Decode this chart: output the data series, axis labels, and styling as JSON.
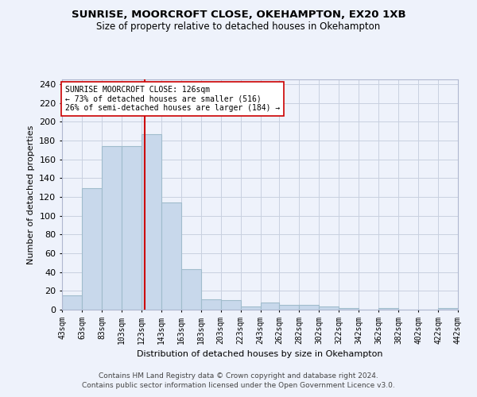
{
  "title": "SUNRISE, MOORCROFT CLOSE, OKEHAMPTON, EX20 1XB",
  "subtitle": "Size of property relative to detached houses in Okehampton",
  "xlabel": "Distribution of detached houses by size in Okehampton",
  "ylabel": "Number of detached properties",
  "bar_color": "#c8d8eb",
  "bar_edge_color": "#a0bccc",
  "background_color": "#eef2fb",
  "grid_color": "#c8d0e0",
  "vline_color": "#cc0000",
  "vline_x": 126,
  "annotation_text": "SUNRISE MOORCROFT CLOSE: 126sqm\n← 73% of detached houses are smaller (516)\n26% of semi-detached houses are larger (184) →",
  "annotation_box_color": "#ffffff",
  "annotation_box_edge": "#cc0000",
  "footer": "Contains HM Land Registry data © Crown copyright and database right 2024.\nContains public sector information licensed under the Open Government Licence v3.0.",
  "bin_edges": [
    43,
    63,
    83,
    103,
    123,
    143,
    163,
    183,
    203,
    223,
    243,
    262,
    282,
    302,
    322,
    342,
    362,
    382,
    402,
    422,
    442
  ],
  "bin_values": [
    15,
    129,
    174,
    174,
    187,
    114,
    43,
    11,
    10,
    3,
    8,
    5,
    5,
    3,
    2,
    0,
    2,
    0,
    0,
    2
  ],
  "ylim": [
    0,
    245
  ],
  "yticks": [
    0,
    20,
    40,
    60,
    80,
    100,
    120,
    140,
    160,
    180,
    200,
    220,
    240
  ],
  "tick_labels": [
    "43sqm",
    "63sqm",
    "83sqm",
    "103sqm",
    "123sqm",
    "143sqm",
    "163sqm",
    "183sqm",
    "203sqm",
    "223sqm",
    "243sqm",
    "262sqm",
    "282sqm",
    "302sqm",
    "322sqm",
    "342sqm",
    "362sqm",
    "382sqm",
    "402sqm",
    "422sqm",
    "442sqm"
  ]
}
